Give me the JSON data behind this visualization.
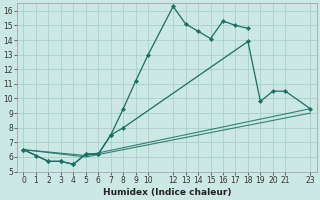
{
  "xlabel": "Humidex (Indice chaleur)",
  "bg_color": "#cce8e4",
  "grid_color": "#aad0cc",
  "line_color": "#1a6e64",
  "xlim": [
    -0.5,
    23.5
  ],
  "ylim": [
    5,
    16.5
  ],
  "xticks": [
    0,
    1,
    2,
    3,
    4,
    5,
    6,
    7,
    8,
    9,
    10,
    12,
    13,
    14,
    15,
    16,
    17,
    18,
    19,
    20,
    21,
    23
  ],
  "yticks": [
    5,
    6,
    7,
    8,
    9,
    10,
    11,
    12,
    13,
    14,
    15,
    16
  ],
  "lines": [
    {
      "x": [
        0,
        1,
        2,
        3,
        4,
        5,
        6,
        7,
        8,
        9,
        10,
        12,
        13,
        14,
        15,
        16,
        17,
        18
      ],
      "y": [
        6.5,
        6.1,
        5.7,
        5.7,
        5.5,
        6.2,
        6.2,
        7.5,
        9.3,
        11.2,
        13.0,
        16.3,
        15.1,
        14.6,
        14.1,
        15.3,
        15.0,
        14.8
      ],
      "marker": true
    },
    {
      "x": [
        0,
        2,
        3,
        4,
        5,
        6,
        7,
        8,
        18,
        19,
        20,
        21,
        23
      ],
      "y": [
        6.5,
        5.7,
        5.7,
        5.5,
        6.2,
        6.2,
        7.5,
        8.0,
        13.9,
        9.8,
        10.5,
        10.5,
        9.3
      ],
      "marker": true
    },
    {
      "x": [
        0,
        5,
        23
      ],
      "y": [
        6.5,
        6.1,
        9.3
      ],
      "marker": false
    },
    {
      "x": [
        0,
        5,
        23
      ],
      "y": [
        6.5,
        6.0,
        9.0
      ],
      "marker": false
    }
  ]
}
